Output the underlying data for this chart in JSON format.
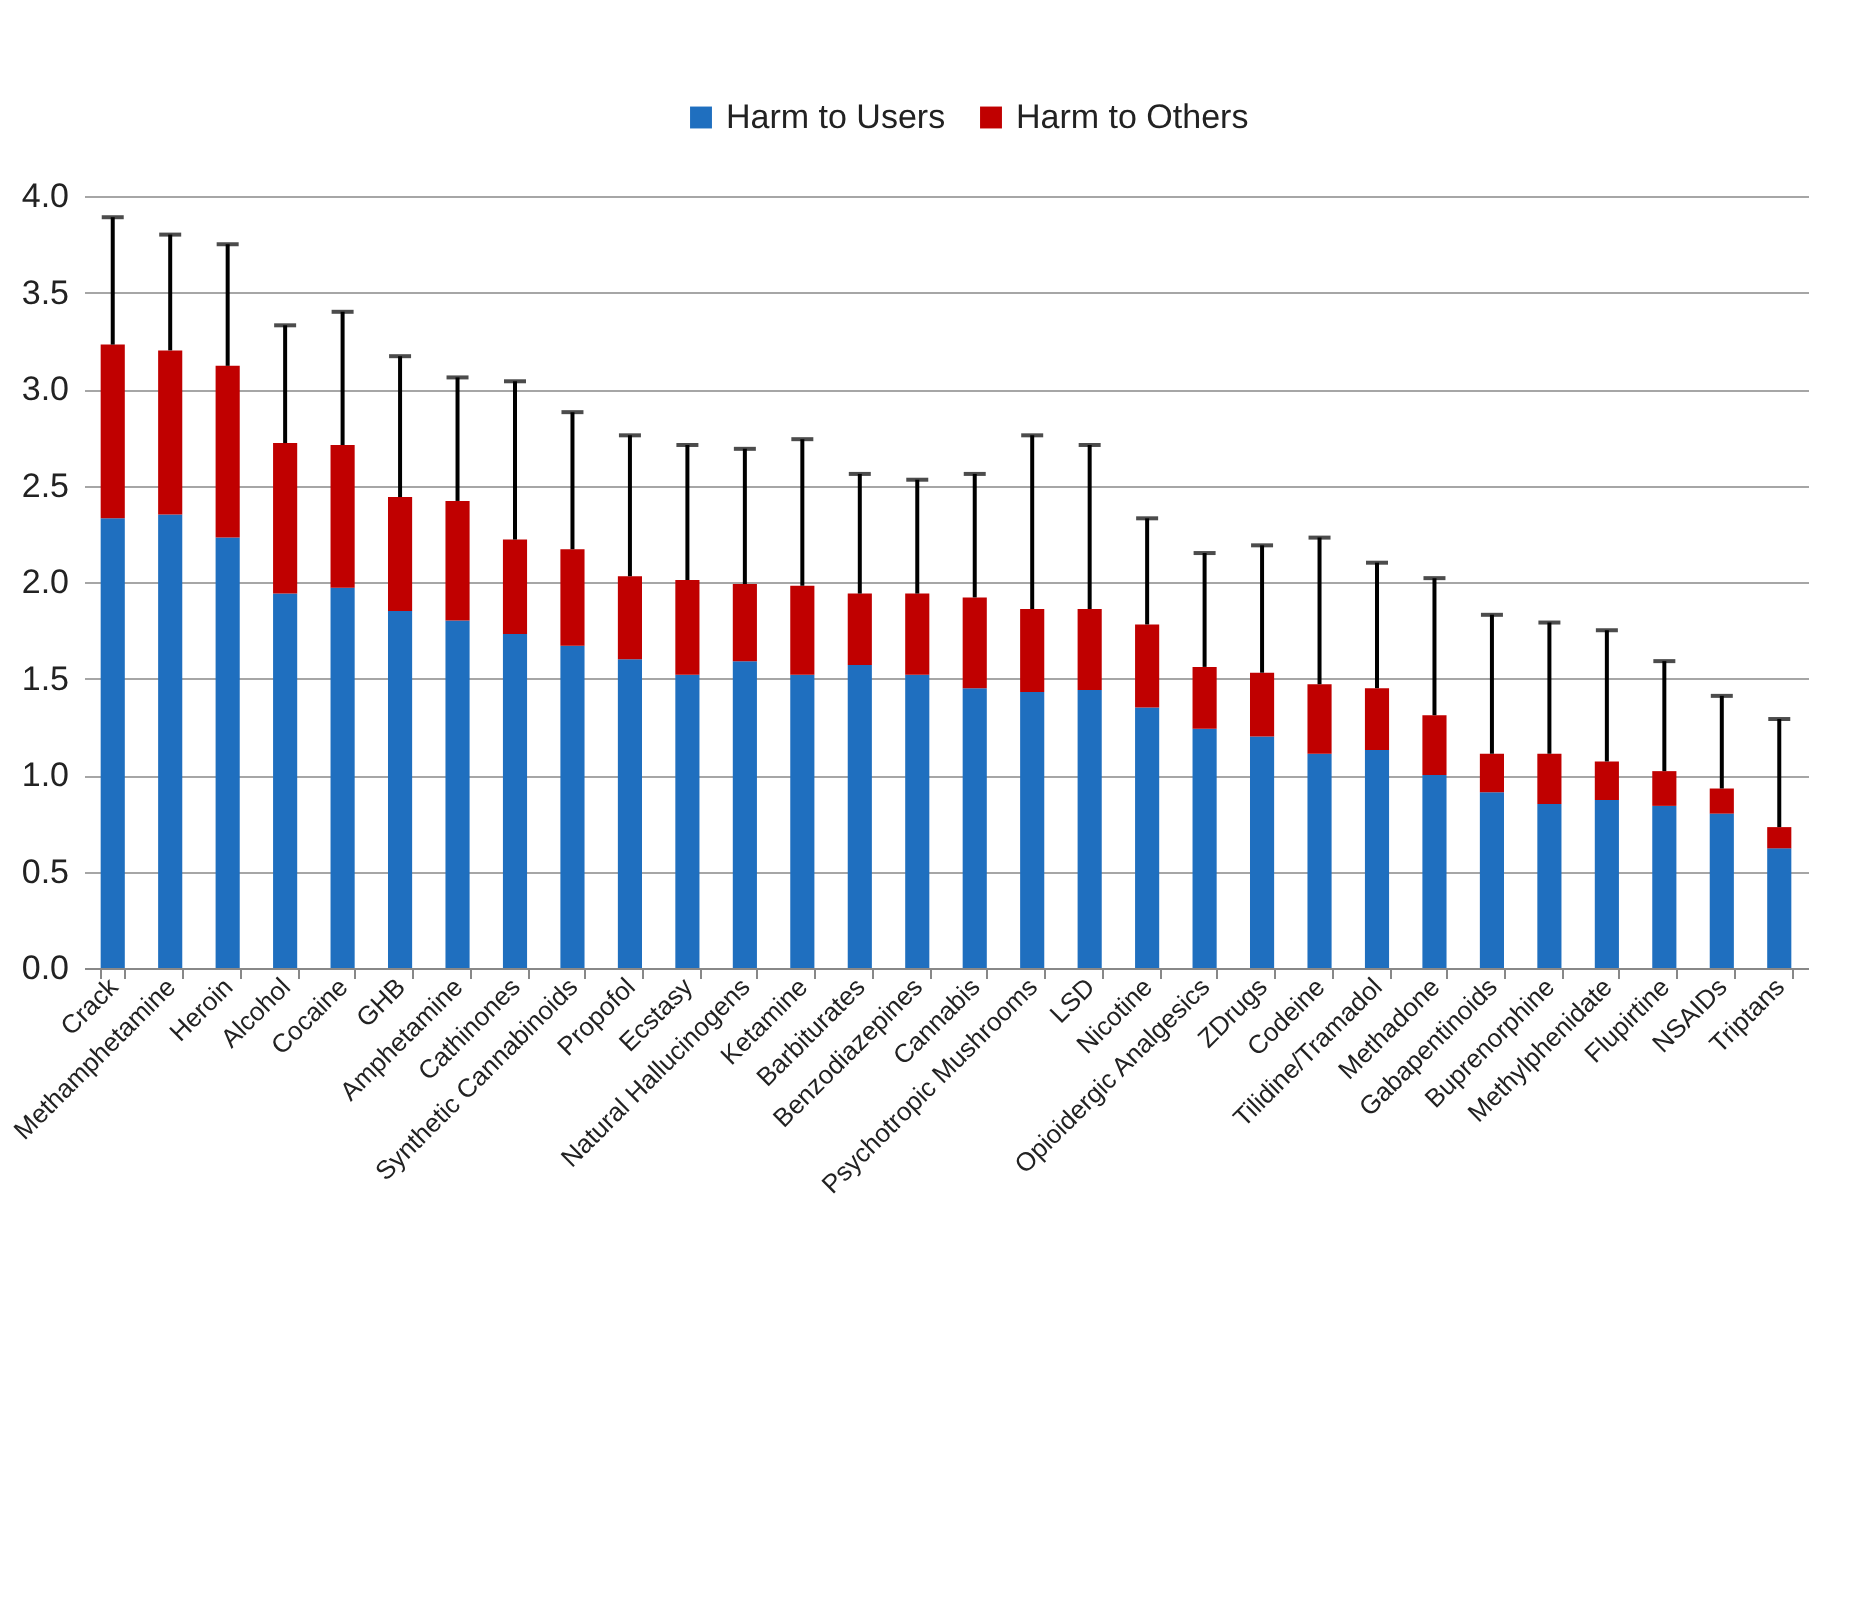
{
  "chart_data": {
    "type": "bar",
    "stacked": true,
    "categories": [
      "Crack",
      "Methamphetamine",
      "Heroin",
      "Alcohol",
      "Cocaine",
      "GHB",
      "Amphetamine",
      "Cathinones",
      "Synthetic Cannabinoids",
      "Propofol",
      "Ecstasy",
      "Natural Hallucinogens",
      "Ketamine",
      "Barbiturates",
      "Benzodiazepines",
      "Cannabis",
      "Psychotropic Mushrooms",
      "LSD",
      "Nicotine",
      "Opioidergic Analgesics",
      "ZDrugs",
      "Codeine",
      "Tilidine/Tramadol",
      "Methadone",
      "Gabapentinoids",
      "Buprenorphine",
      "Methylphenidate",
      "Flupirtine",
      "NSAIDs",
      "Triptans"
    ],
    "series": [
      {
        "name": "Harm to Users",
        "color": "#1f6fbf",
        "values": [
          2.33,
          2.35,
          2.23,
          1.94,
          1.97,
          1.85,
          1.8,
          1.73,
          1.67,
          1.6,
          1.52,
          1.59,
          1.52,
          1.57,
          1.52,
          1.45,
          1.43,
          1.44,
          1.35,
          1.24,
          1.2,
          1.11,
          1.13,
          1.0,
          0.91,
          0.85,
          0.87,
          0.84,
          0.8,
          0.62
        ]
      },
      {
        "name": "Harm to Others",
        "color": "#c00000",
        "values": [
          0.9,
          0.85,
          0.89,
          0.78,
          0.74,
          0.59,
          0.62,
          0.49,
          0.5,
          0.43,
          0.49,
          0.4,
          0.46,
          0.37,
          0.42,
          0.47,
          0.43,
          0.42,
          0.43,
          0.32,
          0.33,
          0.36,
          0.32,
          0.31,
          0.2,
          0.26,
          0.2,
          0.18,
          0.13,
          0.11
        ],
        "errors": [
          [
            3.23,
            3.89
          ],
          [
            3.2,
            3.8
          ],
          [
            3.12,
            3.75
          ],
          [
            2.72,
            3.33
          ],
          [
            2.71,
            3.4
          ],
          [
            2.44,
            3.17
          ],
          [
            2.42,
            3.06
          ],
          [
            2.22,
            3.04
          ],
          [
            2.17,
            2.88
          ],
          [
            2.03,
            2.76
          ],
          [
            2.01,
            2.71
          ],
          [
            1.99,
            2.69
          ],
          [
            1.98,
            2.74
          ],
          [
            1.94,
            2.56
          ],
          [
            1.94,
            2.53
          ],
          [
            1.92,
            2.56
          ],
          [
            1.86,
            2.76
          ],
          [
            1.86,
            2.71
          ],
          [
            1.78,
            2.33
          ],
          [
            1.56,
            2.15
          ],
          [
            1.53,
            2.19
          ],
          [
            1.47,
            2.23
          ],
          [
            1.45,
            2.1
          ],
          [
            1.31,
            2.02
          ],
          [
            1.11,
            1.83
          ],
          [
            1.11,
            1.79
          ],
          [
            1.07,
            1.75
          ],
          [
            1.02,
            1.59
          ],
          [
            0.93,
            1.41
          ],
          [
            0.73,
            1.29
          ]
        ]
      }
    ],
    "ylim": [
      0,
      4
    ],
    "yticks": [
      {
        "value": 0,
        "label": "0.0"
      },
      0.5,
      {
        "value": 1,
        "label": "1.0"
      },
      1.5,
      {
        "value": 2,
        "label": "2.0"
      },
      2.5,
      {
        "value": 3,
        "label": "3.0"
      },
      3.5,
      {
        "value": 4,
        "label": "4.0"
      }
    ],
    "grid": "y",
    "legend": "top"
  }
}
